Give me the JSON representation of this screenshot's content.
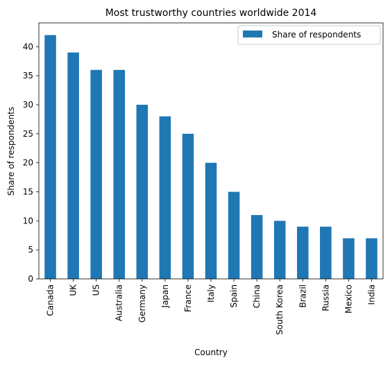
{
  "chart_data": {
    "type": "bar",
    "title": "Most trustworthy countries worldwide 2014",
    "xlabel": "Country",
    "ylabel": "Share of respondents",
    "categories": [
      "Canada",
      "UK",
      "US",
      "Australia",
      "Germany",
      "Japan",
      "France",
      "Italy",
      "Spain",
      "China",
      "South Korea",
      "Brazil",
      "Russia",
      "Mexico",
      "India"
    ],
    "series": [
      {
        "name": "Share of respondents",
        "values": [
          42,
          39,
          36,
          36,
          30,
          28,
          25,
          20,
          15,
          11,
          10,
          9,
          9,
          7,
          7
        ],
        "color": "#1f77b4"
      }
    ],
    "ylim": [
      0,
      44.1
    ],
    "yticks": [
      0,
      5,
      10,
      15,
      20,
      25,
      30,
      35,
      40
    ],
    "grid": false,
    "legend": {
      "position": "top-right",
      "entries": [
        "Share of respondents"
      ]
    }
  }
}
